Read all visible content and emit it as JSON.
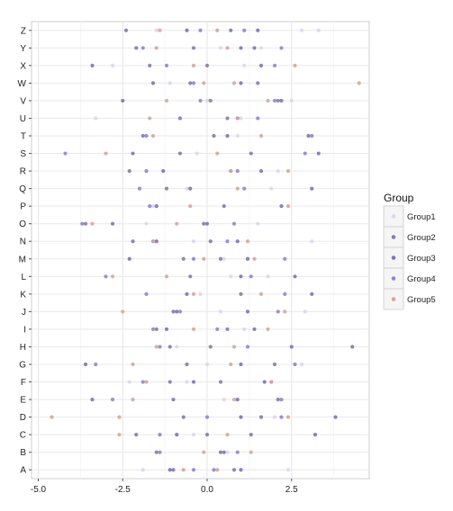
{
  "chart_data": {
    "type": "scatter",
    "title": "",
    "xlabel": "",
    "ylabel": "",
    "xlim": [
      -5.2,
      4.8
    ],
    "x_ticks": [
      -5.0,
      -2.5,
      0.0,
      2.5
    ],
    "x_tick_labels": [
      "-5.0",
      "-2.5",
      "0.0",
      "2.5"
    ],
    "categories": [
      "A",
      "B",
      "C",
      "D",
      "E",
      "F",
      "G",
      "H",
      "I",
      "J",
      "K",
      "L",
      "M",
      "N",
      "O",
      "P",
      "Q",
      "R",
      "S",
      "T",
      "U",
      "V",
      "W",
      "X",
      "Y",
      "Z"
    ],
    "grid": true,
    "legend": {
      "title": "Group",
      "position": "right",
      "entries": [
        "Group1",
        "Group2",
        "Group3",
        "Group4",
        "Group5"
      ]
    },
    "colors": {
      "Group1": "#e0d4ee",
      "Group2": "#8a7aa6",
      "Group3": "#7d74b6",
      "Group4": "#8f86cf",
      "Group5": "#d2a8a0"
    },
    "series": [
      {
        "name": "Group1",
        "points": [
          [
            "A",
            2.4
          ],
          [
            "A",
            -1.9
          ],
          [
            "B",
            0.6
          ],
          [
            "C",
            -0.4
          ],
          [
            "D",
            2.0
          ],
          [
            "E",
            0.5
          ],
          [
            "F",
            -2.3
          ],
          [
            "F",
            -0.6
          ],
          [
            "G",
            2.8
          ],
          [
            "G",
            0.0
          ],
          [
            "H",
            -0.9
          ],
          [
            "I",
            1.1
          ],
          [
            "J",
            2.9
          ],
          [
            "J",
            0.4
          ],
          [
            "K",
            -0.2
          ],
          [
            "L",
            1.8
          ],
          [
            "L",
            0.7
          ],
          [
            "M",
            0.5
          ],
          [
            "N",
            3.1
          ],
          [
            "N",
            -0.4
          ],
          [
            "O",
            -1.8
          ],
          [
            "O",
            1.5
          ],
          [
            "P",
            -1.6
          ],
          [
            "Q",
            -0.6
          ],
          [
            "Q",
            1.9
          ],
          [
            "R",
            2.1
          ],
          [
            "S",
            -0.3
          ],
          [
            "T",
            0.9
          ],
          [
            "U",
            -3.3
          ],
          [
            "U",
            1.0
          ],
          [
            "V",
            0.0
          ],
          [
            "V",
            2.5
          ],
          [
            "W",
            -1.1
          ],
          [
            "X",
            -2.8
          ],
          [
            "X",
            1.1
          ],
          [
            "Y",
            1.6
          ],
          [
            "Y",
            0.4
          ],
          [
            "Z",
            2.8
          ],
          [
            "Z",
            3.3
          ],
          [
            "Z",
            -1.5
          ]
        ]
      },
      {
        "name": "Group2",
        "points": [
          [
            "A",
            -1.0
          ],
          [
            "A",
            0.8
          ],
          [
            "B",
            -1.5
          ],
          [
            "B",
            0.5
          ],
          [
            "C",
            -2.1
          ],
          [
            "C",
            0.0
          ],
          [
            "C",
            1.3
          ],
          [
            "D",
            -0.7
          ],
          [
            "D",
            1.6
          ],
          [
            "E",
            -1.0
          ],
          [
            "E",
            2.1
          ],
          [
            "F",
            0.4
          ],
          [
            "F",
            -1.1
          ],
          [
            "G",
            -0.6
          ],
          [
            "G",
            2.0
          ],
          [
            "H",
            0.1
          ],
          [
            "H",
            -1.1
          ],
          [
            "I",
            -1.5
          ],
          [
            "I",
            0.6
          ],
          [
            "J",
            -1.0
          ],
          [
            "K",
            1.0
          ],
          [
            "L",
            -0.5
          ],
          [
            "M",
            -0.7
          ],
          [
            "M",
            0.4
          ],
          [
            "N",
            0.1
          ],
          [
            "N",
            -2.2
          ],
          [
            "O",
            -0.1
          ],
          [
            "O",
            -3.6
          ],
          [
            "P",
            0.5
          ],
          [
            "Q",
            -1.2
          ],
          [
            "R",
            0.7
          ],
          [
            "R",
            -2.3
          ],
          [
            "S",
            -0.8
          ],
          [
            "S",
            1.3
          ],
          [
            "T",
            -1.9
          ],
          [
            "T",
            0.2
          ],
          [
            "U",
            0.6
          ],
          [
            "V",
            0.1
          ],
          [
            "V",
            2.1
          ],
          [
            "W",
            -0.5
          ],
          [
            "W",
            1.5
          ],
          [
            "X",
            0.0
          ],
          [
            "X",
            -1.7
          ],
          [
            "Y",
            -0.4
          ],
          [
            "Y",
            1.0
          ],
          [
            "Z",
            0.7
          ],
          [
            "Z",
            -2.4
          ]
        ]
      },
      {
        "name": "Group3",
        "points": [
          [
            "A",
            -1.1
          ],
          [
            "A",
            1.0
          ],
          [
            "B",
            0.4
          ],
          [
            "C",
            3.2
          ],
          [
            "C",
            -0.9
          ],
          [
            "D",
            3.8
          ],
          [
            "D",
            1.0
          ],
          [
            "E",
            -3.4
          ],
          [
            "E",
            0.9
          ],
          [
            "F",
            1.7
          ],
          [
            "F",
            -0.4
          ],
          [
            "G",
            -3.6
          ],
          [
            "G",
            1.0
          ],
          [
            "H",
            4.3
          ],
          [
            "H",
            2.5
          ],
          [
            "I",
            -1.2
          ],
          [
            "I",
            1.4
          ],
          [
            "J",
            -0.9
          ],
          [
            "J",
            1.2
          ],
          [
            "K",
            3.1
          ],
          [
            "K",
            -0.6
          ],
          [
            "L",
            2.6
          ],
          [
            "L",
            1.0
          ],
          [
            "M",
            1.2
          ],
          [
            "M",
            -2.3
          ],
          [
            "N",
            -1.5
          ],
          [
            "N",
            0.9
          ],
          [
            "O",
            -2.8
          ],
          [
            "O",
            0.0
          ],
          [
            "P",
            -1.5
          ],
          [
            "P",
            2.2
          ],
          [
            "Q",
            3.1
          ],
          [
            "Q",
            -0.5
          ],
          [
            "R",
            -1.3
          ],
          [
            "R",
            1.6
          ],
          [
            "S",
            3.3
          ],
          [
            "S",
            -2.2
          ],
          [
            "T",
            3.0
          ],
          [
            "T",
            0.6
          ],
          [
            "U",
            -0.8
          ],
          [
            "U",
            0.9
          ],
          [
            "V",
            2.2
          ],
          [
            "V",
            -2.5
          ],
          [
            "W",
            -1.6
          ],
          [
            "W",
            1.0
          ],
          [
            "X",
            -3.4
          ],
          [
            "X",
            1.6
          ],
          [
            "Y",
            -2.1
          ],
          [
            "Y",
            1.4
          ],
          [
            "Z",
            1.5
          ],
          [
            "Z",
            -0.6
          ]
        ]
      },
      {
        "name": "Group4",
        "points": [
          [
            "A",
            -0.4
          ],
          [
            "A",
            0.2
          ],
          [
            "B",
            -1.4
          ],
          [
            "B",
            0.9
          ],
          [
            "C",
            -1.4
          ],
          [
            "D",
            0.0
          ],
          [
            "D",
            2.2
          ],
          [
            "E",
            -2.8
          ],
          [
            "E",
            2.2
          ],
          [
            "F",
            -1.9
          ],
          [
            "F",
            1.9
          ],
          [
            "G",
            -3.3
          ],
          [
            "G",
            2.6
          ],
          [
            "H",
            -1.4
          ],
          [
            "H",
            1.2
          ],
          [
            "I",
            0.3
          ],
          [
            "I",
            -1.6
          ],
          [
            "J",
            -0.8
          ],
          [
            "J",
            2.1
          ],
          [
            "K",
            2.3
          ],
          [
            "K",
            -1.8
          ],
          [
            "L",
            -3.0
          ],
          [
            "L",
            1.3
          ],
          [
            "M",
            -0.4
          ],
          [
            "M",
            2.3
          ],
          [
            "N",
            -1.6
          ],
          [
            "N",
            0.6
          ],
          [
            "O",
            -3.7
          ],
          [
            "O",
            0.8
          ],
          [
            "P",
            -1.7
          ],
          [
            "Q",
            -2.0
          ],
          [
            "Q",
            1.1
          ],
          [
            "R",
            0.9
          ],
          [
            "R",
            -1.8
          ],
          [
            "S",
            -4.2
          ],
          [
            "S",
            2.9
          ],
          [
            "T",
            -1.8
          ],
          [
            "T",
            3.1
          ],
          [
            "U",
            -0.8
          ],
          [
            "U",
            1.5
          ],
          [
            "V",
            -0.2
          ],
          [
            "V",
            2.0
          ],
          [
            "W",
            -0.4
          ],
          [
            "X",
            2.0
          ],
          [
            "X",
            -1.2
          ],
          [
            "Y",
            -1.9
          ],
          [
            "Y",
            2.2
          ],
          [
            "Z",
            1.1
          ],
          [
            "Z",
            -0.2
          ]
        ]
      },
      {
        "name": "Group5",
        "points": [
          [
            "A",
            0.3
          ],
          [
            "A",
            -0.7
          ],
          [
            "B",
            -0.1
          ],
          [
            "B",
            1.3
          ],
          [
            "C",
            -2.6
          ],
          [
            "C",
            0.6
          ],
          [
            "D",
            -2.6
          ],
          [
            "D",
            2.4
          ],
          [
            "D",
            -4.6
          ],
          [
            "E",
            -2.2
          ],
          [
            "E",
            0.8
          ],
          [
            "F",
            -1.8
          ],
          [
            "F",
            1.9
          ],
          [
            "G",
            -2.2
          ],
          [
            "G",
            0.7
          ],
          [
            "H",
            -1.5
          ],
          [
            "H",
            0.8
          ],
          [
            "I",
            -0.4
          ],
          [
            "I",
            1.8
          ],
          [
            "J",
            -2.5
          ],
          [
            "J",
            2.3
          ],
          [
            "K",
            -0.4
          ],
          [
            "K",
            1.6
          ],
          [
            "L",
            -2.8
          ],
          [
            "L",
            -1.2
          ],
          [
            "M",
            -0.1
          ],
          [
            "M",
            1.4
          ],
          [
            "N",
            -1.6
          ],
          [
            "N",
            1.2
          ],
          [
            "O",
            -3.4
          ],
          [
            "O",
            -0.9
          ],
          [
            "P",
            2.4
          ],
          [
            "P",
            -0.5
          ],
          [
            "Q",
            0.9
          ],
          [
            "R",
            0.7
          ],
          [
            "R",
            2.4
          ],
          [
            "S",
            -3.0
          ],
          [
            "S",
            0.3
          ],
          [
            "T",
            -1.6
          ],
          [
            "T",
            1.6
          ],
          [
            "U",
            -1.7
          ],
          [
            "U",
            0.9
          ],
          [
            "V",
            -1.2
          ],
          [
            "V",
            1.8
          ],
          [
            "W",
            -0.1
          ],
          [
            "W",
            4.5
          ],
          [
            "W",
            0.8
          ],
          [
            "X",
            -0.4
          ],
          [
            "X",
            2.6
          ],
          [
            "Y",
            -1.5
          ],
          [
            "Y",
            0.6
          ],
          [
            "Z",
            -1.4
          ],
          [
            "Z",
            0.3
          ]
        ]
      }
    ]
  }
}
